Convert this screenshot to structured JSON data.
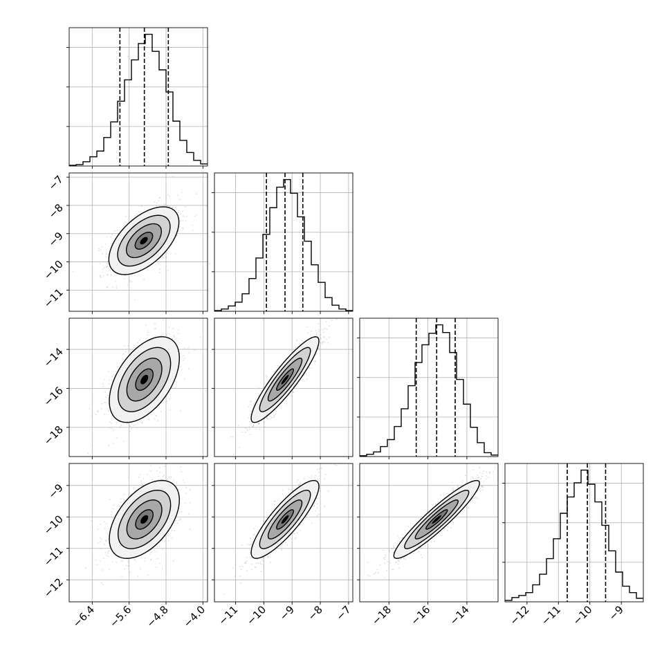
{
  "chart_data": {
    "type": "corner",
    "parameters": [
      "p0",
      "p1",
      "p2",
      "p3"
    ],
    "parameter_labels": [
      "",
      "",
      "",
      ""
    ],
    "grid": true,
    "axes": [
      {
        "range": [
          -6.9,
          -3.9
        ],
        "ticks": [
          -6.4,
          -5.6,
          -4.8,
          -4.0
        ],
        "tick_labels": [
          "−6.4",
          "−5.6",
          "−4.8",
          "−4.0"
        ]
      },
      {
        "range": [
          -11.75,
          -6.85
        ],
        "ticks": [
          -11,
          -10,
          -9,
          -8,
          -7
        ],
        "tick_labels": [
          "−11",
          "−10",
          "−9",
          "−8",
          "−7"
        ]
      },
      {
        "range": [
          -19.5,
          -12.4
        ],
        "ticks": [
          -18,
          -16,
          -14
        ],
        "tick_labels": [
          "−18",
          "−16",
          "−14"
        ]
      },
      {
        "range": [
          -12.7,
          -8.3
        ],
        "ticks": [
          -12,
          -11,
          -10,
          -9
        ],
        "tick_labels": [
          "−12",
          "−11",
          "−10",
          "−9"
        ]
      }
    ],
    "y_axes": [
      null,
      {
        "range": [
          -11.75,
          -6.85
        ],
        "ticks": [
          -11,
          -10,
          -9,
          -8,
          -7
        ],
        "tick_labels": [
          "−11",
          "−10",
          "−9",
          "−8",
          "−7"
        ]
      },
      {
        "range": [
          -19.5,
          -12.4
        ],
        "ticks": [
          -18,
          -16,
          -14
        ],
        "tick_labels": [
          "−18",
          "−16",
          "−14"
        ]
      },
      {
        "range": [
          -12.7,
          -8.3
        ],
        "ticks": [
          -12,
          -11,
          -10,
          -9
        ],
        "tick_labels": [
          "−12",
          "−11",
          "−10",
          "−9"
        ]
      }
    ],
    "histograms": [
      {
        "bin_edges": [
          -6.9,
          -6.75,
          -6.6,
          -6.45,
          -6.3,
          -6.15,
          -6.0,
          -5.85,
          -5.7,
          -5.55,
          -5.4,
          -5.25,
          -5.1,
          -4.95,
          -4.8,
          -4.65,
          -4.5,
          -4.35,
          -4.2,
          -4.05,
          -3.9
        ],
        "counts": [
          1,
          2,
          6,
          13,
          21,
          40,
          62,
          91,
          121,
          149,
          172,
          185,
          161,
          135,
          104,
          63,
          36,
          19,
          8,
          3
        ],
        "quantiles": [
          -5.8,
          -5.27,
          -4.75
        ]
      },
      {
        "bin_edges": [
          -11.75,
          -11.505,
          -11.26,
          -11.015,
          -10.77,
          -10.525,
          -10.28,
          -10.035,
          -9.79,
          -9.545,
          -9.3,
          -9.055,
          -8.81,
          -8.565,
          -8.32,
          -8.075,
          -7.83,
          -7.585,
          -7.34,
          -7.095,
          -6.85
        ],
        "counts": [
          1,
          3,
          7,
          12,
          23,
          43,
          70,
          101,
          136,
          163,
          173,
          155,
          124,
          92,
          61,
          38,
          18,
          8,
          3,
          1
        ],
        "quantiles": [
          -9.91,
          -9.25,
          -8.62
        ]
      },
      {
        "bin_edges": [
          -19.5,
          -19.145,
          -18.79,
          -18.435,
          -18.08,
          -17.725,
          -17.37,
          -17.015,
          -16.66,
          -16.305,
          -15.95,
          -15.595,
          -15.24,
          -14.885,
          -14.53,
          -14.175,
          -13.82,
          -13.465,
          -13.11,
          -12.755,
          -12.4
        ],
        "counts": [
          1,
          3,
          6,
          13,
          22,
          39,
          62,
          92,
          122,
          145,
          160,
          171,
          161,
          135,
          100,
          68,
          38,
          18,
          5,
          2
        ],
        "quantiles": [
          -16.6,
          -15.55,
          -14.6
        ]
      },
      {
        "bin_edges": [
          -12.7,
          -12.48,
          -12.26,
          -12.04,
          -11.82,
          -11.6,
          -11.38,
          -11.16,
          -10.94,
          -10.72,
          -10.5,
          -10.28,
          -10.06,
          -9.84,
          -9.62,
          -9.4,
          -9.18,
          -8.96,
          -8.74,
          -8.52,
          -8.3
        ],
        "counts": [
          2,
          6,
          9,
          13,
          24,
          39,
          61,
          89,
          125,
          148,
          168,
          186,
          166,
          141,
          108,
          72,
          42,
          22,
          13,
          5
        ],
        "quantiles": [
          -10.72,
          -10.08,
          -9.5
        ]
      }
    ],
    "joint": [
      {
        "x": 0,
        "y": 1,
        "center": [
          -5.28,
          -9.25
        ],
        "sigma": [
          0.38,
          0.6
        ],
        "corr": 0.55
      },
      {
        "x": 0,
        "y": 2,
        "center": [
          -5.27,
          -15.55
        ],
        "sigma": [
          0.38,
          1.1
        ],
        "corr": 0.5
      },
      {
        "x": 1,
        "y": 2,
        "center": [
          -9.25,
          -15.55
        ],
        "sigma": [
          0.6,
          1.1
        ],
        "corr": 0.9
      },
      {
        "x": 0,
        "y": 3,
        "center": [
          -5.27,
          -10.08
        ],
        "sigma": [
          0.38,
          0.62
        ],
        "corr": 0.5
      },
      {
        "x": 1,
        "y": 3,
        "center": [
          -9.25,
          -10.08
        ],
        "sigma": [
          0.6,
          0.62
        ],
        "corr": 0.85
      },
      {
        "x": 2,
        "y": 3,
        "center": [
          -15.55,
          -10.08
        ],
        "sigma": [
          1.1,
          0.62
        ],
        "corr": 0.93
      }
    ],
    "contour_levels_sigma": [
      0.5,
      1.0,
      1.5,
      2.0
    ]
  }
}
